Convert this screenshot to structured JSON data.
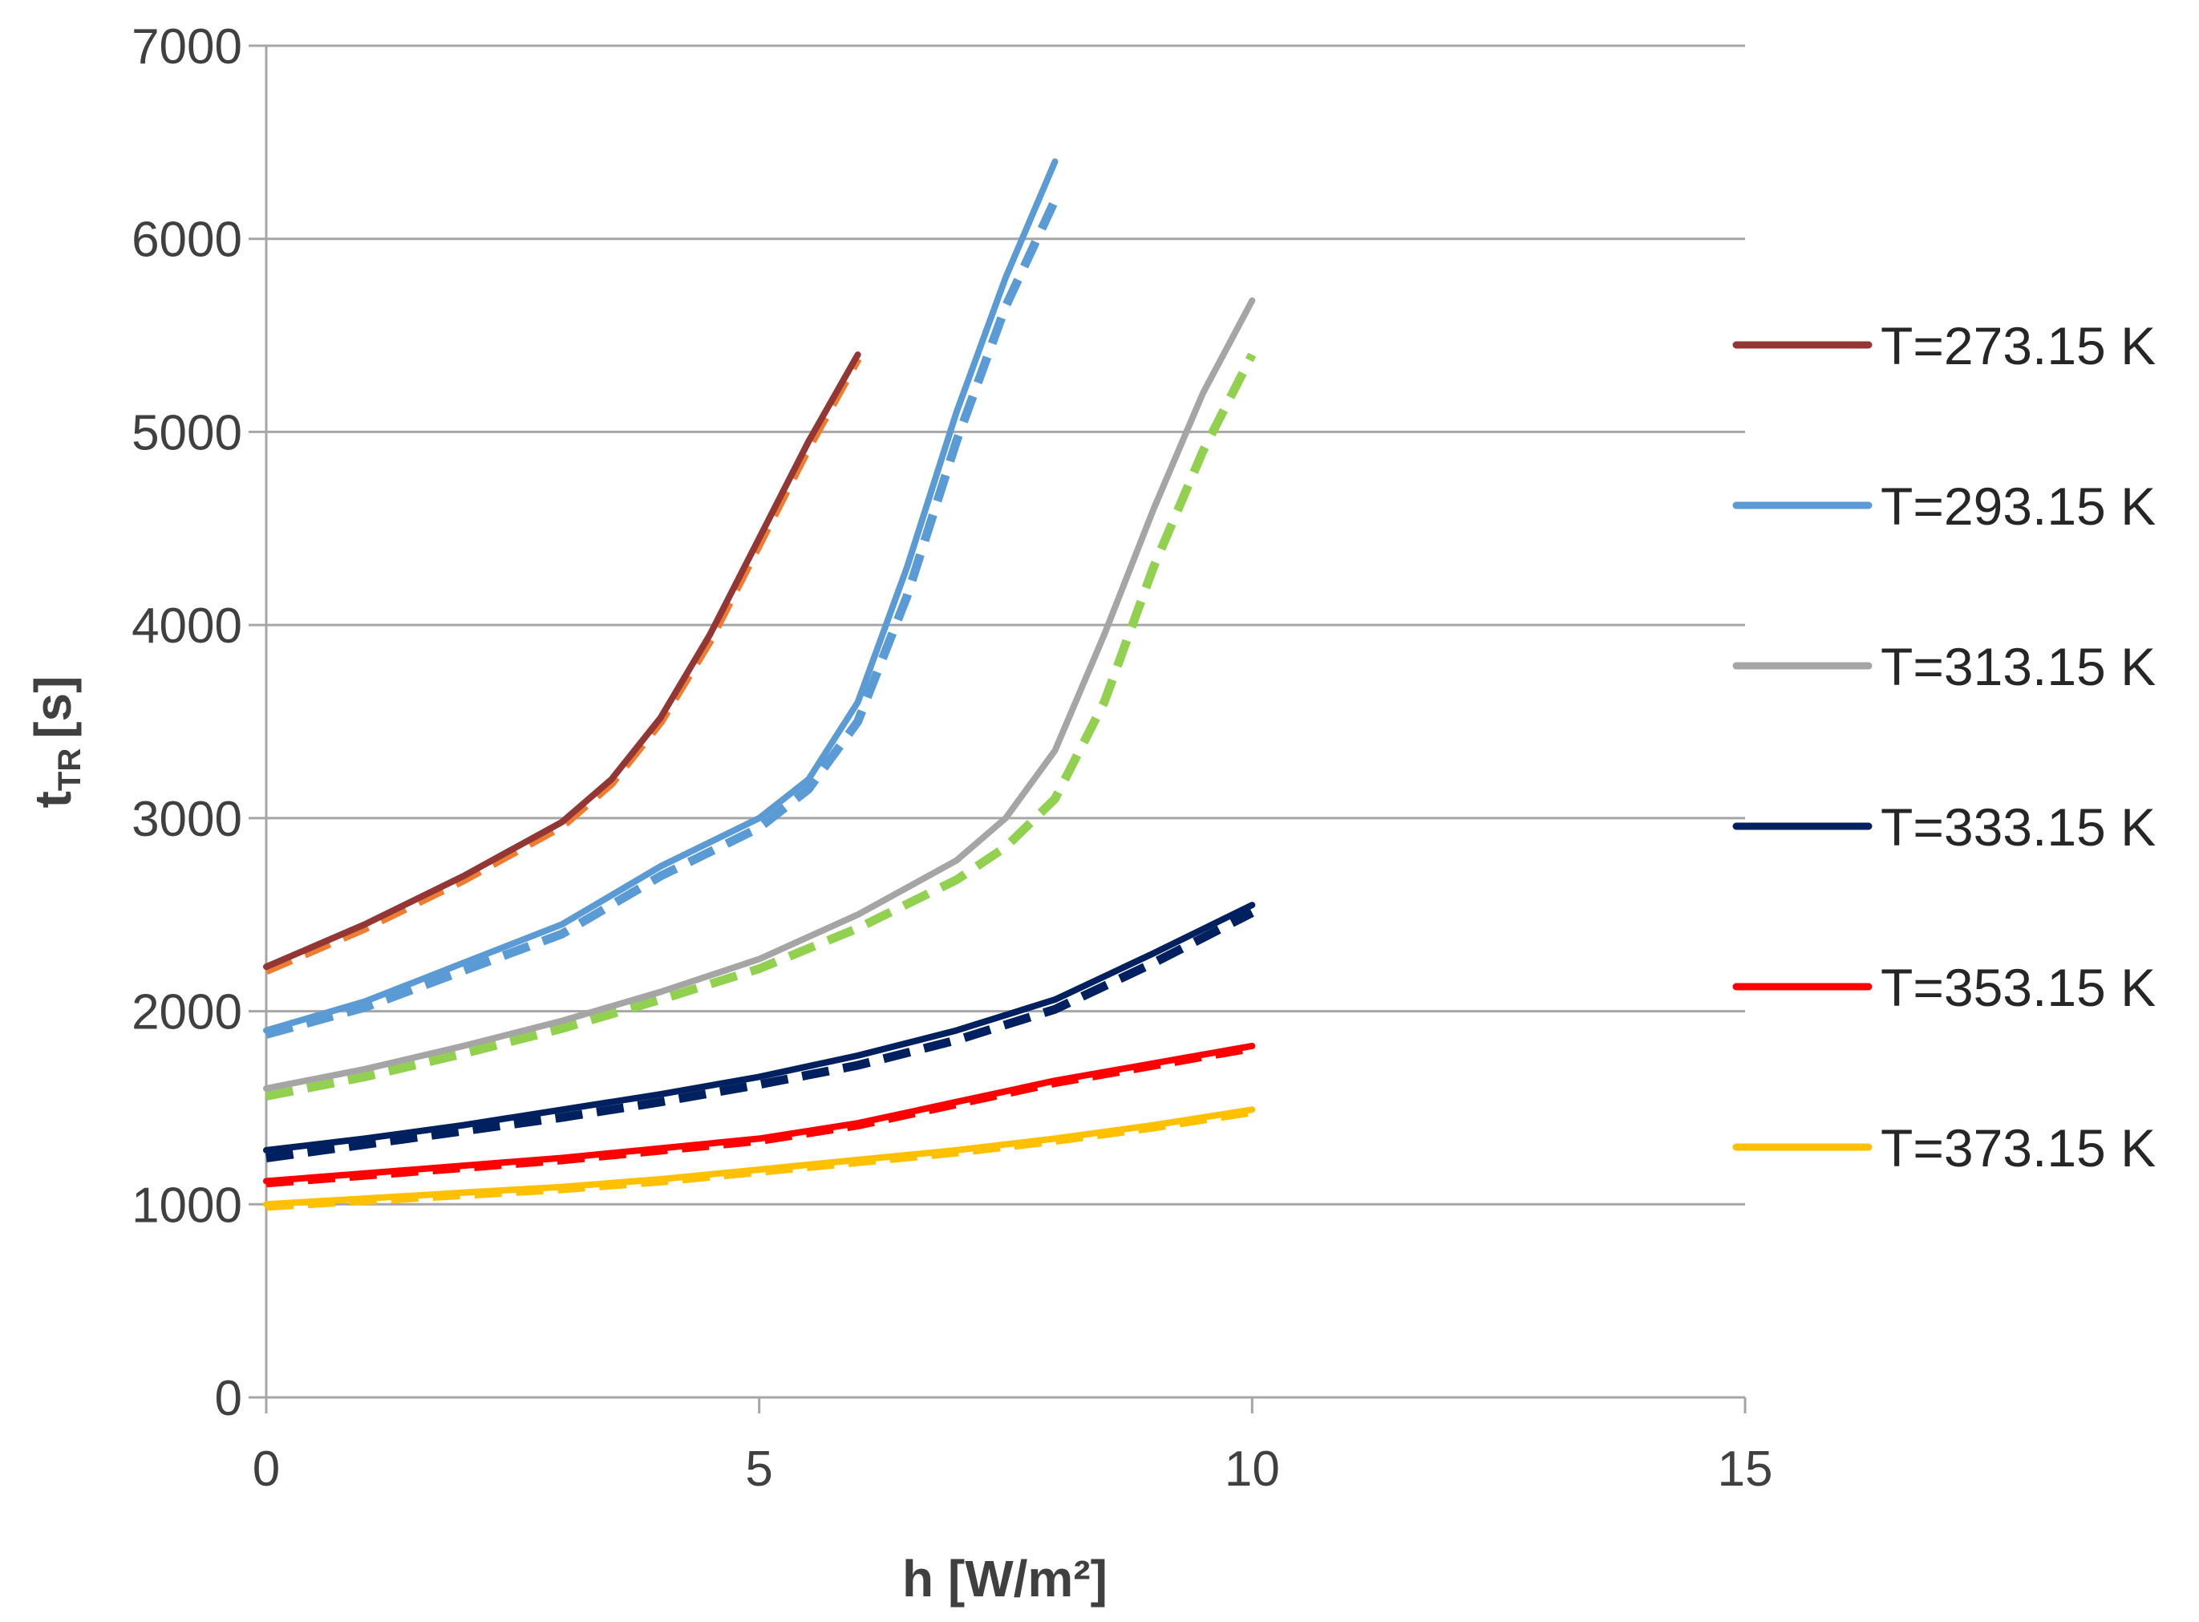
{
  "chart_data": {
    "type": "line",
    "title": "",
    "xlabel": "h [W/m²]",
    "ylabel": "t_TR [s]",
    "ylabel_parts": {
      "main": "t",
      "sub": "TR",
      "unit": "[s]"
    },
    "xlim": [
      0,
      15
    ],
    "ylim": [
      0,
      7000
    ],
    "xticks": [
      0,
      5,
      10,
      15
    ],
    "yticks": [
      0,
      1000,
      2000,
      3000,
      4000,
      5000,
      6000,
      7000
    ],
    "grid": "horizontal",
    "legend_position": "right",
    "series": [
      {
        "name": "T=273.15 K",
        "color": "#943634",
        "x": [
          0,
          1,
          2,
          3,
          3.5,
          4,
          4.5,
          5,
          5.5,
          6
        ],
        "values": [
          2230,
          2450,
          2700,
          2980,
          3200,
          3520,
          3950,
          4450,
          4950,
          5400
        ]
      },
      {
        "name": "T=293.15 K",
        "color": "#5B9BD5",
        "x": [
          0,
          1,
          2,
          3,
          4,
          5,
          5.5,
          6,
          6.5,
          7,
          7.5,
          8
        ],
        "values": [
          1900,
          2050,
          2250,
          2450,
          2750,
          3000,
          3200,
          3600,
          4300,
          5100,
          5800,
          6400
        ]
      },
      {
        "name": "T=313.15 K",
        "color": "#A5A5A5",
        "x": [
          0,
          1,
          2,
          3,
          4,
          5,
          6,
          7,
          7.5,
          8,
          8.5,
          9,
          9.5,
          10
        ],
        "values": [
          1600,
          1700,
          1820,
          1950,
          2100,
          2270,
          2500,
          2780,
          3000,
          3350,
          3950,
          4600,
          5200,
          5680
        ]
      },
      {
        "name": "T=333.15 K",
        "color": "#002060",
        "x": [
          0,
          1,
          2,
          3,
          4,
          5,
          6,
          7,
          8,
          9,
          10
        ],
        "values": [
          1280,
          1340,
          1410,
          1490,
          1570,
          1660,
          1770,
          1900,
          2060,
          2300,
          2550
        ]
      },
      {
        "name": "T=353.15 K",
        "color": "#FF0000",
        "x": [
          0,
          1,
          2,
          3,
          4,
          5,
          6,
          7,
          8,
          9,
          10
        ],
        "values": [
          1120,
          1160,
          1200,
          1240,
          1290,
          1340,
          1420,
          1530,
          1640,
          1730,
          1820
        ]
      },
      {
        "name": "T=373.15 K",
        "color": "#FFC000",
        "x": [
          0,
          1,
          2,
          3,
          4,
          5,
          6,
          7,
          8,
          9,
          10
        ],
        "values": [
          1000,
          1030,
          1060,
          1090,
          1130,
          1180,
          1230,
          1280,
          1340,
          1410,
          1490
        ]
      }
    ],
    "model_series": [
      {
        "name": "",
        "color": "#ED7D31",
        "x": [
          0,
          1,
          2,
          3,
          3.5,
          4,
          4.5,
          5,
          5.5,
          6
        ],
        "values": [
          2210,
          2430,
          2680,
          2960,
          3180,
          3500,
          3920,
          4420,
          4920,
          5380
        ]
      },
      {
        "name": "",
        "color": "#5B9BD5",
        "x": [
          0,
          1,
          2,
          3,
          4,
          5,
          5.5,
          6,
          6.5,
          7,
          7.5,
          8
        ],
        "values": [
          1880,
          2020,
          2210,
          2400,
          2700,
          2950,
          3150,
          3500,
          4150,
          4950,
          5650,
          6200
        ]
      },
      {
        "name": "",
        "color": "#92D050",
        "x": [
          0,
          1,
          2,
          3,
          4,
          5,
          6,
          7,
          7.5,
          8,
          8.5,
          9,
          9.5,
          10
        ],
        "values": [
          1560,
          1660,
          1780,
          1910,
          2060,
          2220,
          2430,
          2680,
          2850,
          3100,
          3600,
          4300,
          4900,
          5400
        ]
      },
      {
        "name": "",
        "color": "#002060",
        "x": [
          0,
          1,
          2,
          3,
          4,
          5,
          6,
          7,
          8,
          9,
          10
        ],
        "values": [
          1240,
          1310,
          1380,
          1450,
          1530,
          1620,
          1720,
          1850,
          2010,
          2250,
          2510
        ]
      },
      {
        "name": "",
        "color": "#FF0000",
        "x": [
          0,
          1,
          2,
          3,
          4,
          5,
          6,
          7,
          8,
          9,
          10
        ],
        "values": [
          1110,
          1150,
          1190,
          1230,
          1280,
          1330,
          1410,
          1520,
          1630,
          1720,
          1810
        ]
      },
      {
        "name": "",
        "color": "#FFC000",
        "x": [
          0,
          1,
          2,
          3,
          4,
          5,
          6,
          7,
          8,
          9,
          10
        ],
        "values": [
          990,
          1020,
          1050,
          1080,
          1120,
          1170,
          1220,
          1270,
          1330,
          1400,
          1480
        ]
      }
    ],
    "colors": {
      "grid": "#A6A6A6",
      "axis": "#A6A6A6",
      "text": "#404040"
    }
  }
}
